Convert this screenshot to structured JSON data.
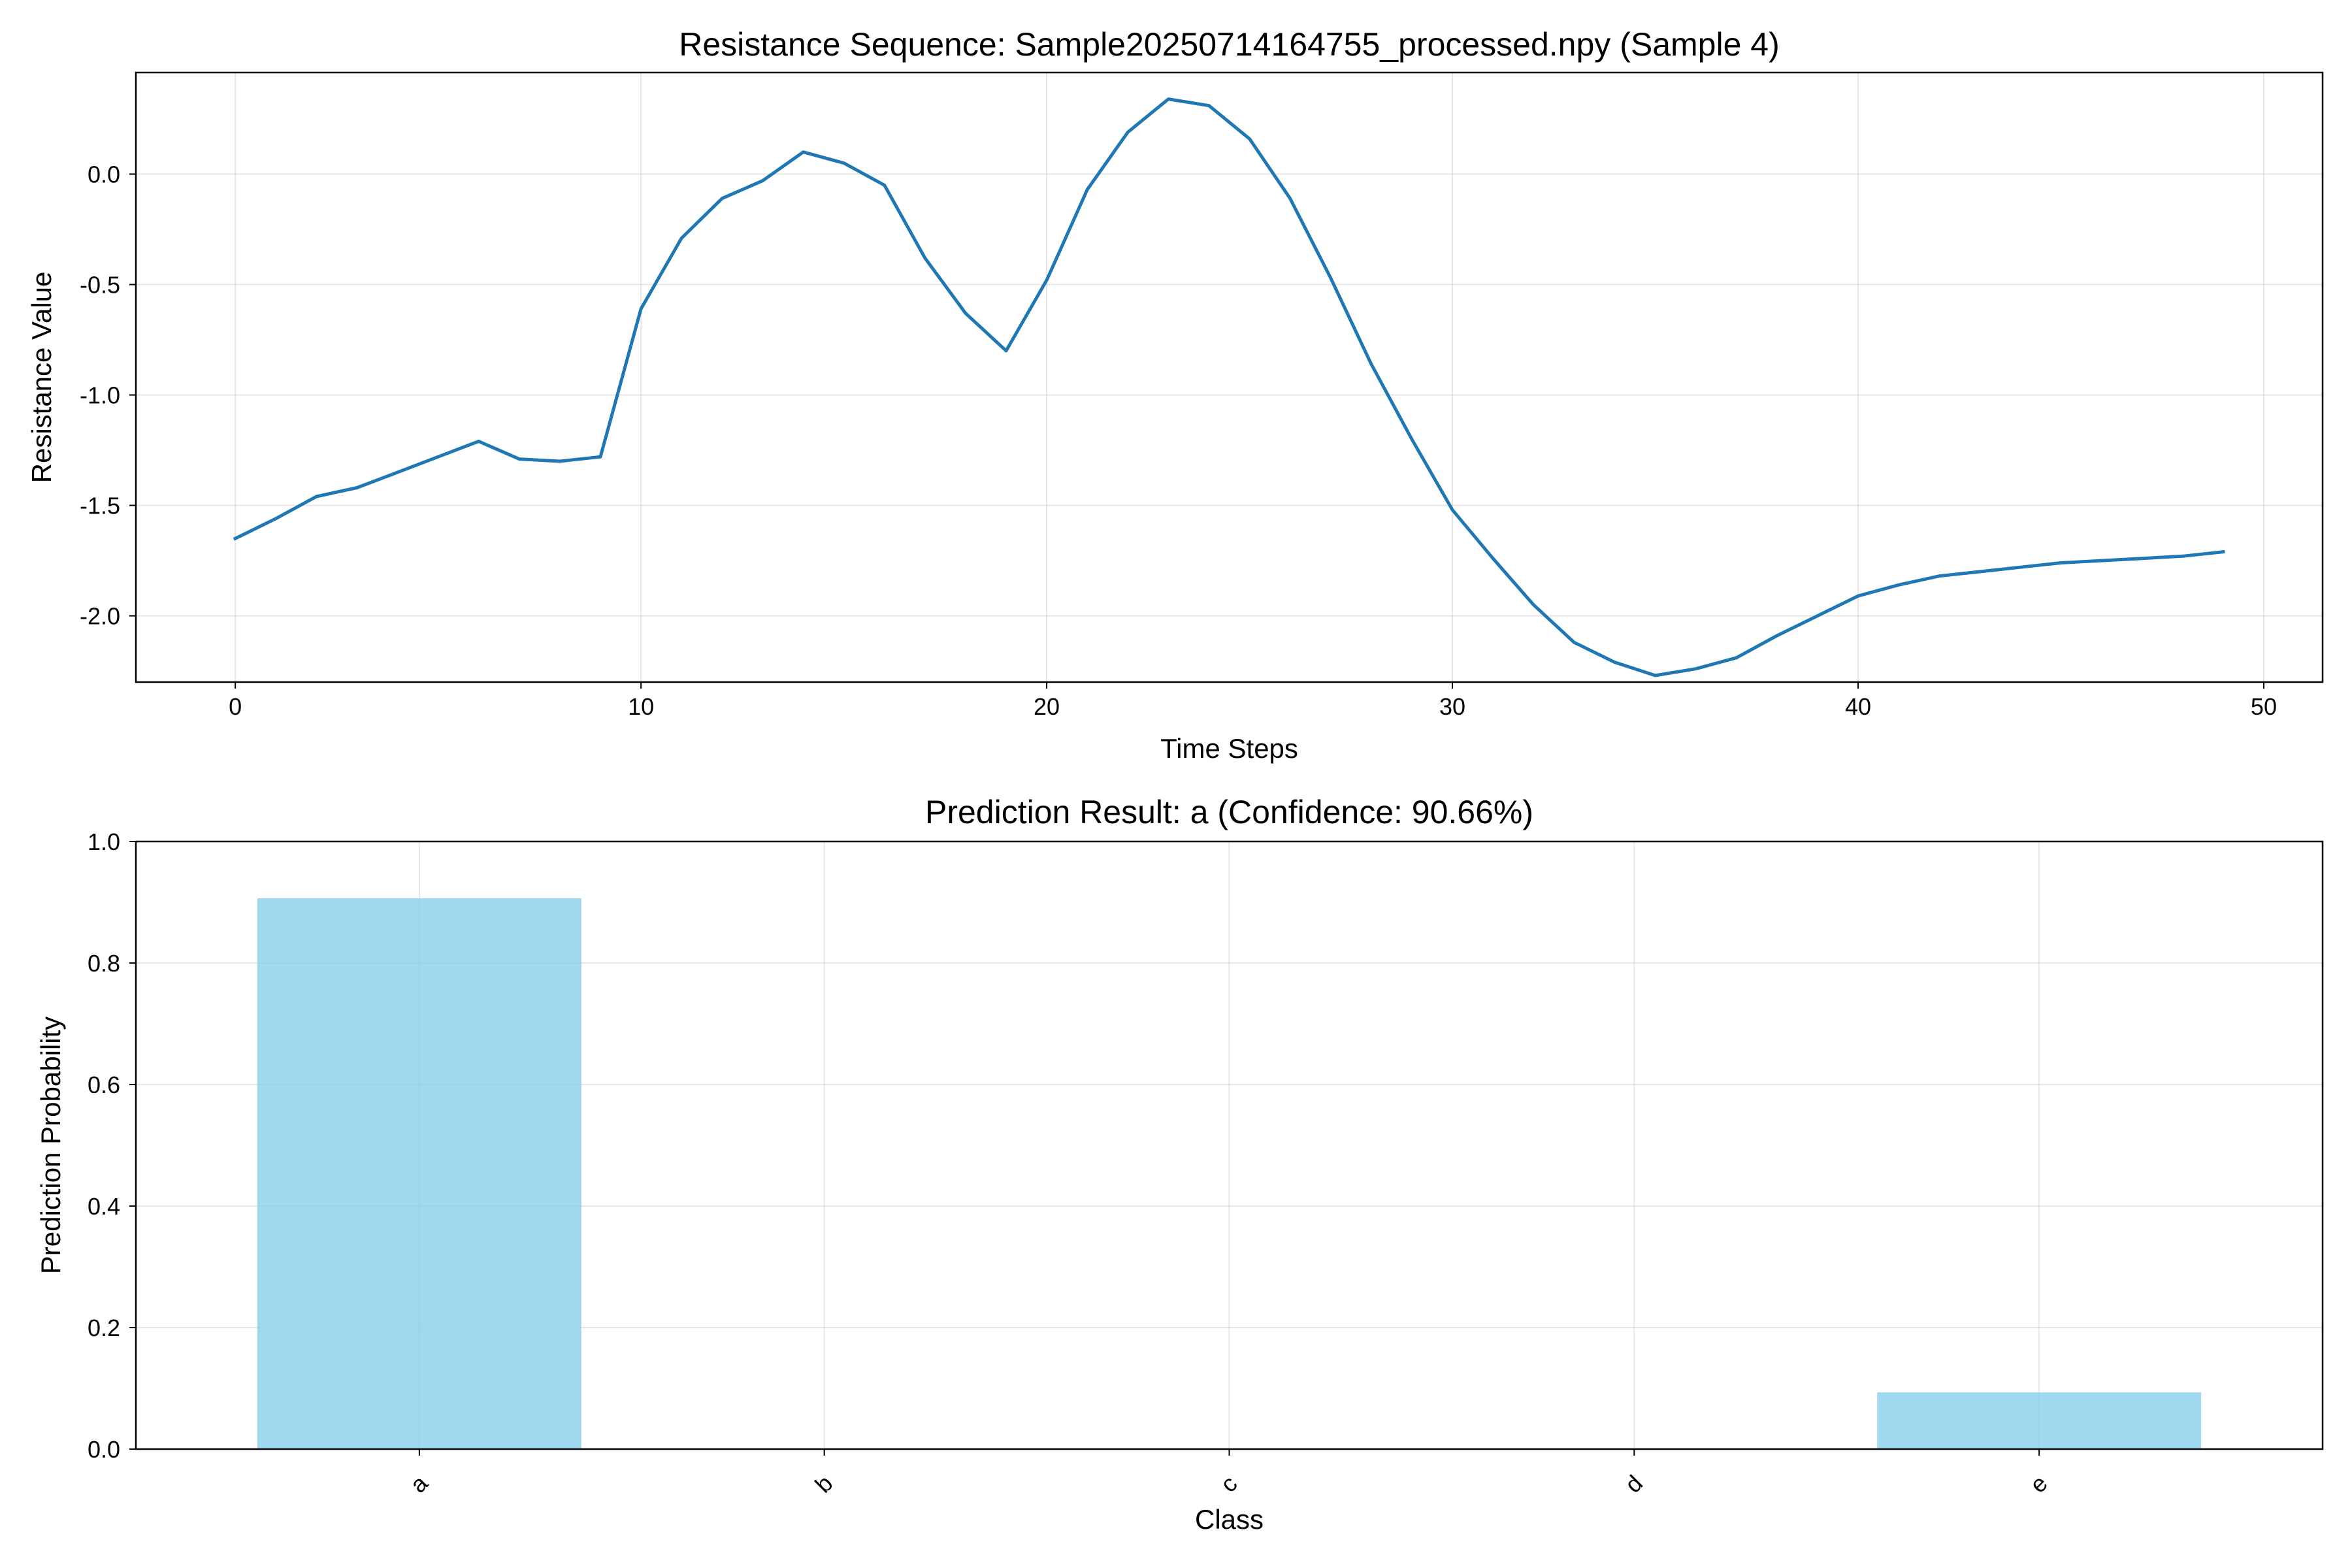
{
  "chart_data": [
    {
      "type": "line",
      "title": "Resistance Sequence: Sample20250714164755_processed.npy (Sample 4)",
      "xlabel": "Time Steps",
      "ylabel": "Resistance Value",
      "xlim": [
        -2.45,
        51.45
      ],
      "ylim": [
        -2.3,
        0.46
      ],
      "xticks": [
        0,
        10,
        20,
        30,
        40,
        50
      ],
      "yticks": [
        0.0,
        -0.5,
        -1.0,
        -1.5,
        -2.0
      ],
      "xtick_labels": [
        "0",
        "10",
        "20",
        "30",
        "40",
        "50"
      ],
      "ytick_labels": [
        "0.0",
        "-0.5",
        "-1.0",
        "-1.5",
        "-2.0"
      ],
      "grid": true,
      "line_color": "#1f77b4",
      "x": [
        0,
        1,
        2,
        3,
        4,
        5,
        6,
        7,
        8,
        9,
        10,
        11,
        12,
        13,
        14,
        15,
        16,
        17,
        18,
        19,
        20,
        21,
        22,
        23,
        24,
        25,
        26,
        27,
        28,
        29,
        30,
        31,
        32,
        33,
        34,
        35,
        36,
        37,
        38,
        39,
        40,
        41,
        42,
        43,
        44,
        45,
        46,
        47,
        48,
        49
      ],
      "y": [
        -1.65,
        -1.56,
        -1.46,
        -1.42,
        -1.35,
        -1.28,
        -1.21,
        -1.29,
        -1.3,
        -1.28,
        -0.61,
        -0.29,
        -0.11,
        -0.03,
        0.1,
        0.05,
        -0.05,
        -0.38,
        -0.63,
        -0.8,
        -0.48,
        -0.07,
        0.19,
        0.34,
        0.31,
        0.16,
        -0.11,
        -0.47,
        -0.86,
        -1.2,
        -1.52,
        -1.74,
        -1.95,
        -2.12,
        -2.21,
        -2.27,
        -2.24,
        -2.19,
        -2.09,
        -2.0,
        -1.91,
        -1.86,
        -1.82,
        -1.8,
        -1.78,
        -1.76,
        -1.75,
        -1.74,
        -1.73,
        -1.71
      ]
    },
    {
      "type": "bar",
      "title": "Prediction Result: a (Confidence: 90.66%)",
      "xlabel": "Class",
      "ylabel": "Prediction Probability",
      "categories": [
        "a",
        "b",
        "c",
        "d",
        "e"
      ],
      "values": [
        0.9066,
        0.0,
        0.0,
        0.0,
        0.0934
      ],
      "ylim": [
        0,
        1.0
      ],
      "yticks": [
        0.0,
        0.2,
        0.4,
        0.6,
        0.8,
        1.0
      ],
      "ytick_labels": [
        "0.0",
        "0.2",
        "0.4",
        "0.6",
        "0.8",
        "1.0"
      ],
      "grid": true,
      "bar_color": "#87ceeb",
      "bar_opacity": 0.8
    }
  ]
}
